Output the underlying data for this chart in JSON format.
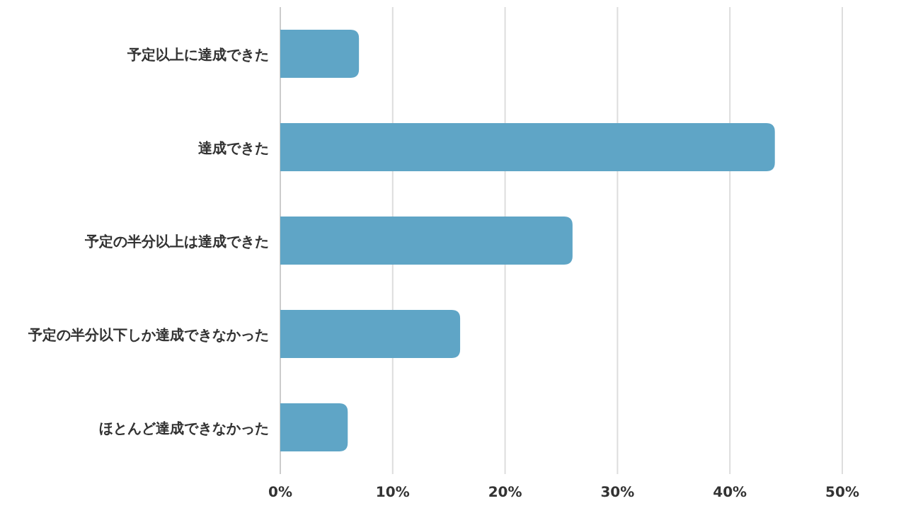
{
  "chart_data": {
    "type": "bar",
    "orientation": "horizontal",
    "categories": [
      "予定以上に達成できた",
      "達成できた",
      "予定の半分以上は達成できた",
      "予定の半分以下しか達成できなかった",
      "ほとんど達成できなかった"
    ],
    "values": [
      7,
      44,
      26,
      16,
      6
    ],
    "color": "#5fa5c6",
    "xlim": [
      0,
      50
    ],
    "xticks": [
      {
        "value": 0,
        "label": "0%"
      },
      {
        "value": 10,
        "label": "10%"
      },
      {
        "value": 20,
        "label": "20%"
      },
      {
        "value": 30,
        "label": "30%"
      },
      {
        "value": 40,
        "label": "40%"
      },
      {
        "value": 50,
        "label": "50%"
      }
    ],
    "grid": "x"
  }
}
